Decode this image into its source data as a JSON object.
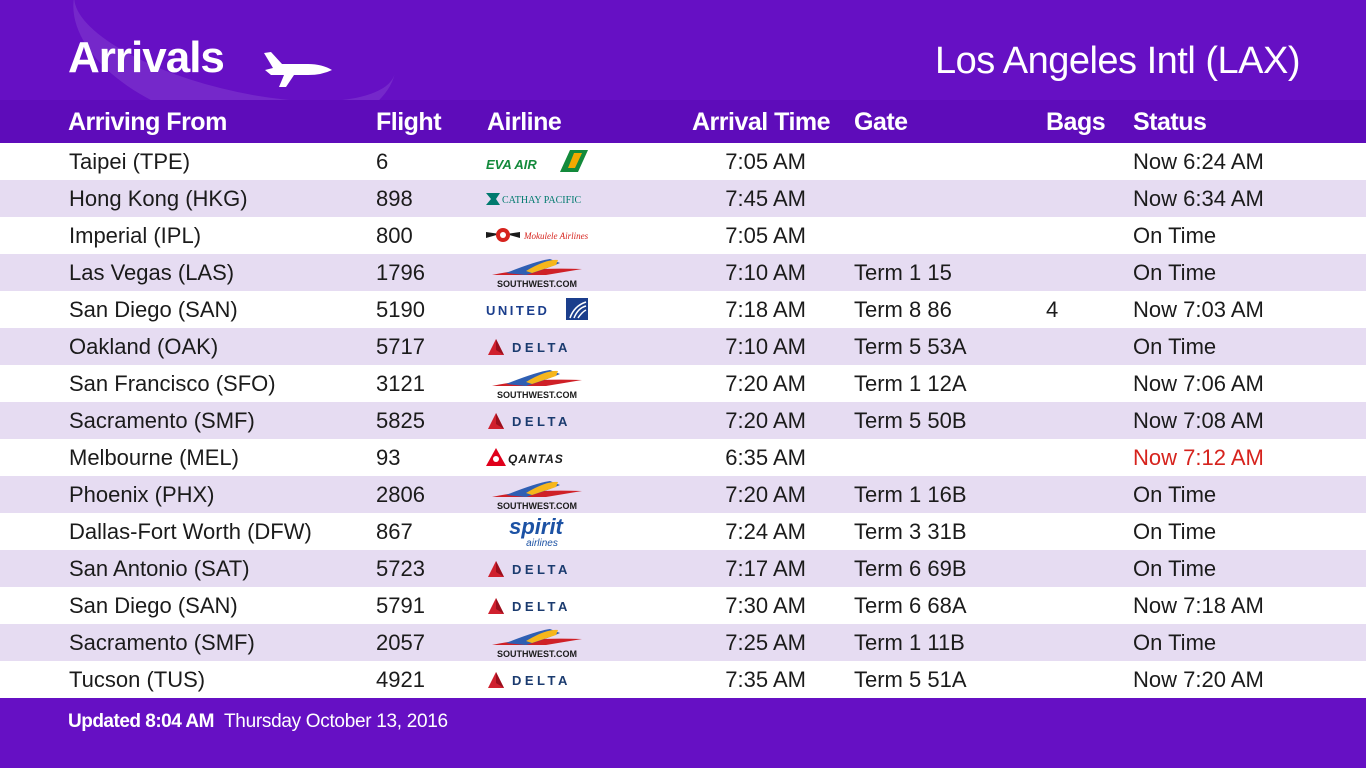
{
  "header": {
    "title": "Arrivals",
    "airport": "Los Angeles Intl (LAX)"
  },
  "columns": {
    "from": "Arriving From",
    "flight": "Flight",
    "airline": "Airline",
    "time": "Arrival Time",
    "gate": "Gate",
    "bags": "Bags",
    "status": "Status"
  },
  "flights": [
    {
      "from": "Taipei (TPE)",
      "flight": "6",
      "airline": "EVA AIR",
      "time": "7:05 AM",
      "gate": "",
      "bags": "",
      "status": "Now 6:24 AM",
      "late": false
    },
    {
      "from": "Hong Kong (HKG)",
      "flight": "898",
      "airline": "CATHAY PACIFIC",
      "time": "7:45 AM",
      "gate": "",
      "bags": "",
      "status": "Now 6:34 AM",
      "late": false
    },
    {
      "from": "Imperial (IPL)",
      "flight": "800",
      "airline": "Mokulele Airlines",
      "time": "7:05 AM",
      "gate": "",
      "bags": "",
      "status": "On Time",
      "late": false
    },
    {
      "from": "Las Vegas (LAS)",
      "flight": "1796",
      "airline": "SOUTHWEST.COM",
      "time": "7:10 AM",
      "gate": "Term 1 15",
      "bags": "",
      "status": "On Time",
      "late": false
    },
    {
      "from": "San Diego (SAN)",
      "flight": "5190",
      "airline": "UNITED",
      "time": "7:18 AM",
      "gate": "Term 8 86",
      "bags": "4",
      "status": "Now 7:03 AM",
      "late": false
    },
    {
      "from": "Oakland (OAK)",
      "flight": "5717",
      "airline": "DELTA",
      "time": "7:10 AM",
      "gate": "Term 5 53A",
      "bags": "",
      "status": "On Time",
      "late": false
    },
    {
      "from": "San Francisco (SFO)",
      "flight": "3121",
      "airline": "SOUTHWEST.COM",
      "time": "7:20 AM",
      "gate": "Term 1 12A",
      "bags": "",
      "status": "Now 7:06 AM",
      "late": false
    },
    {
      "from": "Sacramento (SMF)",
      "flight": "5825",
      "airline": "DELTA",
      "time": "7:20 AM",
      "gate": "Term 5 50B",
      "bags": "",
      "status": "Now 7:08 AM",
      "late": false
    },
    {
      "from": "Melbourne (MEL)",
      "flight": "93",
      "airline": "QANTAS",
      "time": "6:35 AM",
      "gate": "",
      "bags": "",
      "status": "Now 7:12 AM",
      "late": true
    },
    {
      "from": "Phoenix (PHX)",
      "flight": "2806",
      "airline": "SOUTHWEST.COM",
      "time": "7:20 AM",
      "gate": "Term 1 16B",
      "bags": "",
      "status": "On Time",
      "late": false
    },
    {
      "from": "Dallas-Fort Worth (DFW)",
      "flight": "867",
      "airline": "spirit airlines",
      "time": "7:24 AM",
      "gate": "Term 3 31B",
      "bags": "",
      "status": "On Time",
      "late": false
    },
    {
      "from": "San Antonio (SAT)",
      "flight": "5723",
      "airline": "DELTA",
      "time": "7:17 AM",
      "gate": "Term 6 69B",
      "bags": "",
      "status": "On Time",
      "late": false
    },
    {
      "from": "San Diego (SAN)",
      "flight": "5791",
      "airline": "DELTA",
      "time": "7:30 AM",
      "gate": "Term 6 68A",
      "bags": "",
      "status": "Now 7:18 AM",
      "late": false
    },
    {
      "from": "Sacramento (SMF)",
      "flight": "2057",
      "airline": "SOUTHWEST.COM",
      "time": "7:25 AM",
      "gate": "Term 1 11B",
      "bags": "",
      "status": "On Time",
      "late": false
    },
    {
      "from": "Tucson (TUS)",
      "flight": "4921",
      "airline": "DELTA",
      "time": "7:35 AM",
      "gate": "Term 5 51A",
      "bags": "",
      "status": "Now 7:20 AM",
      "late": false
    }
  ],
  "footer": {
    "updated": "Updated 8:04 AM",
    "date": "Thursday October 13, 2016"
  },
  "colors": {
    "brand_purple": "#6610c4",
    "header_row": "#5e0cba",
    "alt_row": "#e6dcf2",
    "late_text": "#d6231d"
  }
}
